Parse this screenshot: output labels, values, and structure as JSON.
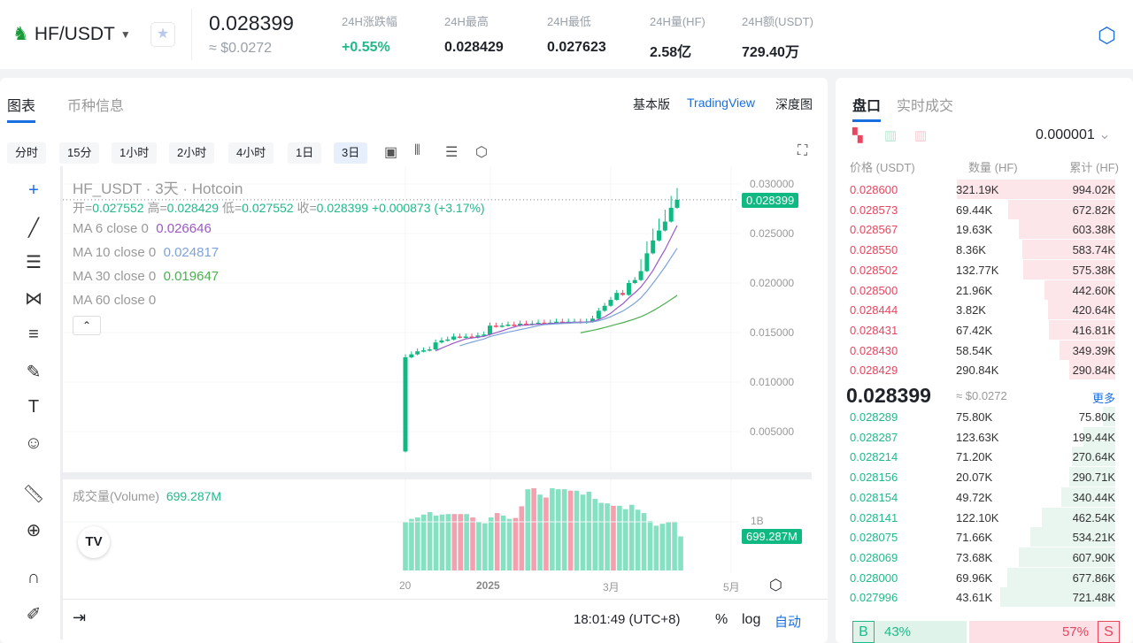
{
  "header": {
    "pair": "HF/USDT",
    "last_price": "0.028399",
    "last_usd": "≈ $0.0272",
    "stats": [
      {
        "label": "24H涨跌幅",
        "value": "+0.55%",
        "color": "#1fb98a"
      },
      {
        "label": "24H最高",
        "value": "0.028429"
      },
      {
        "label": "24H最低",
        "value": "0.027623"
      },
      {
        "label": "24H量(HF)",
        "value": "2.58亿"
      },
      {
        "label": "24H额(USDT)",
        "value": "729.40万"
      }
    ]
  },
  "chart": {
    "tabs": [
      "图表",
      "币种信息"
    ],
    "views": [
      "基本版",
      "TradingView",
      "深度图"
    ],
    "intervals": [
      "分时",
      "15分",
      "1小时",
      "2小时",
      "4小时",
      "1日",
      "3日"
    ],
    "active_interval": "3日",
    "title": "HF_USDT · 3天 · Hotcoin",
    "ohlc": {
      "o_label": "开=",
      "o": "0.027552",
      "h_label": "高=",
      "h": "0.028429",
      "l_label": "低=",
      "l": "0.027552",
      "c_label": "收=",
      "c": "0.028399",
      "change": "+0.000873 (+3.17%)"
    },
    "ma": [
      {
        "label": "MA 6 close 0",
        "value": "0.026646",
        "color": "#9b59c6"
      },
      {
        "label": "MA 10 close 0",
        "value": "0.024817",
        "color": "#7fa3d8"
      },
      {
        "label": "MA 30 close 0",
        "value": "0.019647",
        "color": "#4caf50"
      },
      {
        "label": "MA 60 close 0",
        "value": ""
      }
    ],
    "volume_label": "成交量(Volume)",
    "volume_value": "699.287M",
    "price_ticks": [
      "0.030000",
      "0.025000",
      "0.020000",
      "0.015000",
      "0.010000",
      "0.005000"
    ],
    "price_tag": "0.028399",
    "vol_tick": "1B",
    "vol_tag": "699.287M",
    "x_ticks": [
      "20",
      "2025",
      "3月",
      "5月"
    ],
    "time": "18:01:49 (UTC+8)",
    "pct": "%",
    "log": "log",
    "auto": "自动"
  },
  "chart_data": {
    "type": "candlestick",
    "ylim": [
      0.003,
      0.0305
    ],
    "closes": [
      0.0125,
      0.0128,
      0.0131,
      0.0132,
      0.0133,
      0.014,
      0.0142,
      0.0143,
      0.0146,
      0.0145,
      0.0146,
      0.0145,
      0.0147,
      0.0148,
      0.0157,
      0.0156,
      0.0157,
      0.0158,
      0.0157,
      0.0159,
      0.0158,
      0.0159,
      0.016,
      0.0159,
      0.016,
      0.0161,
      0.016,
      0.0161,
      0.0161,
      0.016,
      0.0161,
      0.0164,
      0.0172,
      0.0177,
      0.0183,
      0.019,
      0.0188,
      0.02,
      0.0203,
      0.0212,
      0.023,
      0.0243,
      0.0253,
      0.0262,
      0.0276,
      0.0284
    ],
    "first_open": 0.003,
    "volumes_B": [
      0.99,
      1.06,
      1.09,
      1.15,
      1.2,
      1.13,
      1.15,
      1.16,
      1.16,
      1.16,
      1.16,
      1.09,
      1.0,
      0.97,
      1.09,
      1.18,
      1.13,
      1.06,
      1.08,
      1.32,
      1.67,
      1.69,
      1.56,
      1.5,
      1.69,
      1.67,
      1.67,
      1.64,
      1.64,
      1.56,
      1.62,
      1.47,
      1.39,
      1.38,
      1.33,
      1.33,
      1.26,
      1.35,
      1.25,
      1.18,
      1.02,
      0.92,
      0.96,
      0.99,
      1.01,
      0.7
    ],
    "volume_down_idx": [
      8,
      9,
      11,
      15,
      18,
      19,
      21,
      23,
      27,
      34
    ],
    "up_color": "#10b981",
    "down_color": "#f0506e"
  },
  "book": {
    "tabs": [
      "盘口",
      "实时成交"
    ],
    "precision": "0.000001",
    "headers": [
      "价格 (USDT)",
      "数量 (HF)",
      "累计 (HF)"
    ],
    "asks": [
      [
        "0.028600",
        "321.19K",
        "994.02K"
      ],
      [
        "0.028573",
        "69.44K",
        "672.82K"
      ],
      [
        "0.028567",
        "19.63K",
        "603.38K"
      ],
      [
        "0.028550",
        "8.36K",
        "583.74K"
      ],
      [
        "0.028502",
        "132.77K",
        "575.38K"
      ],
      [
        "0.028500",
        "21.96K",
        "442.60K"
      ],
      [
        "0.028444",
        "3.82K",
        "420.64K"
      ],
      [
        "0.028431",
        "67.42K",
        "416.81K"
      ],
      [
        "0.028430",
        "58.54K",
        "349.39K"
      ],
      [
        "0.028429",
        "290.84K",
        "290.84K"
      ]
    ],
    "mid": "0.028399",
    "mid_usd": "≈ $0.0272",
    "more": "更多",
    "bids": [
      [
        "0.028289",
        "75.80K",
        "75.80K"
      ],
      [
        "0.028287",
        "123.63K",
        "199.44K"
      ],
      [
        "0.028214",
        "71.20K",
        "270.64K"
      ],
      [
        "0.028156",
        "20.07K",
        "290.71K"
      ],
      [
        "0.028154",
        "49.72K",
        "340.44K"
      ],
      [
        "0.028141",
        "122.10K",
        "462.54K"
      ],
      [
        "0.028075",
        "71.66K",
        "534.21K"
      ],
      [
        "0.028069",
        "73.68K",
        "607.90K"
      ],
      [
        "0.028000",
        "69.96K",
        "677.86K"
      ],
      [
        "0.027996",
        "43.61K",
        "721.48K"
      ]
    ],
    "buy_label": "B",
    "buy_pct": "43%",
    "sell_label": "S",
    "sell_pct": "57%",
    "ask_color": "#e8455f",
    "bid_color": "#1fb98a"
  }
}
